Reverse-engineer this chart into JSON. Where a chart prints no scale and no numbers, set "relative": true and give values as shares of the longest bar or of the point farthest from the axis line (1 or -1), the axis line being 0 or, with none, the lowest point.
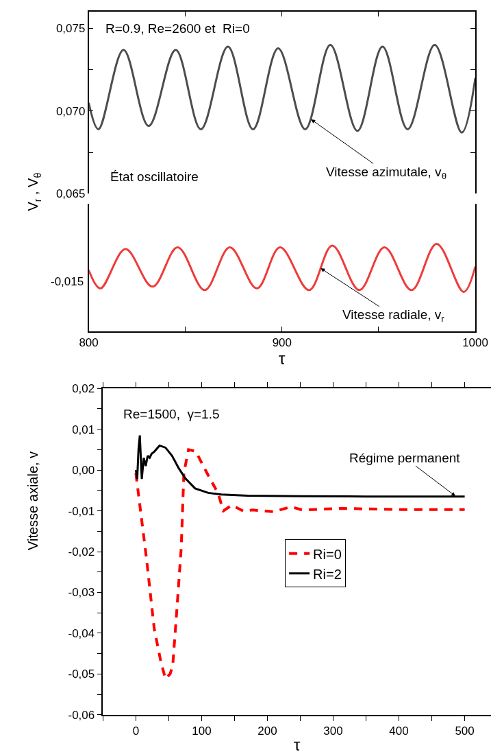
{
  "chart_data": [
    {
      "type": "line",
      "ylabel": "V$_{r}$ , V$_{θ}$",
      "xlim": [
        800,
        1000
      ],
      "ylim": [
        0.065,
        0.076
      ],
      "tick_labels": "y",
      "xticks": [
        800,
        {
          "value": 850,
          "label": null
        },
        900,
        {
          "value": 950,
          "label": null
        },
        1000
      ],
      "yticks": [
        {
          "value": 0.065,
          "label": "0,065"
        },
        {
          "value": 0.0675,
          "label": null
        },
        {
          "value": 0.07,
          "label": "0,070"
        },
        {
          "value": 0.0725,
          "label": null
        },
        {
          "value": 0.075,
          "label": "0,075"
        }
      ],
      "series": [
        {
          "color": "#4d4d4d",
          "x": [
            800,
            805,
            818,
            831,
            845,
            858,
            872,
            885,
            898,
            912,
            925,
            939,
            952,
            965,
            979,
            993,
            1000
          ],
          "values": [
            0.0705,
            0.0689,
            0.0737,
            0.0691,
            0.0737,
            0.0689,
            0.0739,
            0.0689,
            0.0738,
            0.0689,
            0.074,
            0.0688,
            0.0739,
            0.0689,
            0.074,
            0.0687,
            0.072
          ]
        }
      ],
      "annotations": [
        "R=0.9, Re=2600 et  Ri=0",
        "État oscillatoire",
        {
          "text": "Vitesse azimutale, v$_{θ}$",
          "x": 915,
          "y": 0.0695
        }
      ]
    },
    {
      "type": "line",
      "xlabel": "τ",
      "xlim": [
        800,
        1000
      ],
      "relative": true,
      "xticks": [
        800,
        {
          "value": 850,
          "label": null
        },
        900,
        {
          "value": 950,
          "label": null
        },
        1000
      ],
      "series": [
        {
          "color": "#ef3b3b",
          "x": [
            800,
            806,
            819,
            833,
            846,
            860,
            873,
            887,
            899,
            914,
            926,
            940,
            953,
            967,
            980,
            994,
            1000
          ],
          "values": [
            0.7,
            0.49,
            0.94,
            0.51,
            0.96,
            0.47,
            0.96,
            0.49,
            0.96,
            0.47,
            0.98,
            0.47,
            0.96,
            0.47,
            1,
            0.45,
            0.74
          ]
        }
      ],
      "annotations": [
        {
          "text": "Vitesse radiale, v$_{r}$",
          "x": 920,
          "y": 0.72
        },
        "-0,015"
      ]
    },
    {
      "type": "line",
      "xlabel": "τ",
      "ylabel": "Vitesse axiale, v",
      "xlim": [
        -50,
        540
      ],
      "ylim": [
        -0.06,
        0.02
      ],
      "legend": "center",
      "xticks": [
        {
          "value": -50,
          "label": null
        },
        0,
        {
          "value": 50,
          "label": null
        },
        100,
        {
          "value": 150,
          "label": null
        },
        200,
        {
          "value": 250,
          "label": null
        },
        300,
        {
          "value": 350,
          "label": null
        },
        400,
        {
          "value": 450,
          "label": null
        },
        500
      ],
      "yticks": [
        {
          "value": -0.06,
          "label": "-0,06"
        },
        {
          "value": -0.055,
          "label": null
        },
        {
          "value": -0.05,
          "label": "-0,05"
        },
        {
          "value": -0.045,
          "label": null
        },
        {
          "value": -0.04,
          "label": "-0,04"
        },
        {
          "value": -0.035,
          "label": null
        },
        {
          "value": -0.03,
          "label": "-0,03"
        },
        {
          "value": -0.025,
          "label": null
        },
        {
          "value": -0.02,
          "label": "-0,02"
        },
        {
          "value": -0.015,
          "label": null
        },
        {
          "value": -0.01,
          "label": "-0,01"
        },
        {
          "value": -0.005,
          "label": null
        },
        {
          "value": 0,
          "label": "0,00"
        },
        {
          "value": 0.005,
          "label": null
        },
        {
          "value": 0.01,
          "label": "0,01"
        },
        {
          "value": 0.015,
          "label": null
        },
        {
          "value": 0.02,
          "label": "0,02"
        }
      ],
      "series": [
        {
          "name": "Ri=0",
          "color": "#ff0000",
          "line_style": "dashed",
          "x": [
            0,
            16,
            28,
            38,
            45,
            52,
            56,
            62,
            69,
            73,
            80,
            91,
            108,
            125,
            133,
            146,
            164,
            177,
            210,
            236,
            253,
            313,
            400,
            500
          ],
          "values": [
            -0.0008,
            -0.0215,
            -0.039,
            -0.047,
            -0.0512,
            -0.05,
            -0.048,
            -0.035,
            -0.019,
            -0.0007,
            0.005,
            0.0046,
            -0.0007,
            -0.0057,
            -0.01,
            -0.0086,
            -0.0101,
            -0.0098,
            -0.0102,
            -0.009,
            -0.0098,
            -0.0094,
            -0.0097,
            -0.0097
          ]
        },
        {
          "name": "Ri=2",
          "color": "#000000",
          "line_style": "solid",
          "x": [
            0,
            2,
            4,
            6,
            9,
            12,
            15,
            18,
            21,
            24,
            28,
            36,
            45,
            55,
            65,
            75,
            90,
            110,
            130,
            170,
            250,
            350,
            500
          ],
          "values": [
            0,
            -0.0022,
            0.005,
            0.0085,
            -0.0022,
            0.003,
            0.001,
            0.0035,
            0.003,
            0.004,
            0.0045,
            0.006,
            0.0055,
            0.0035,
            0.0005,
            -0.002,
            -0.0045,
            -0.0056,
            -0.006,
            -0.0063,
            -0.0064,
            -0.0065,
            -0.0065
          ]
        }
      ],
      "annotations": [
        "Re=1500,  γ=1.5",
        {
          "text": "Régime permanent",
          "x": 486,
          "y": -0.0064
        }
      ]
    }
  ]
}
